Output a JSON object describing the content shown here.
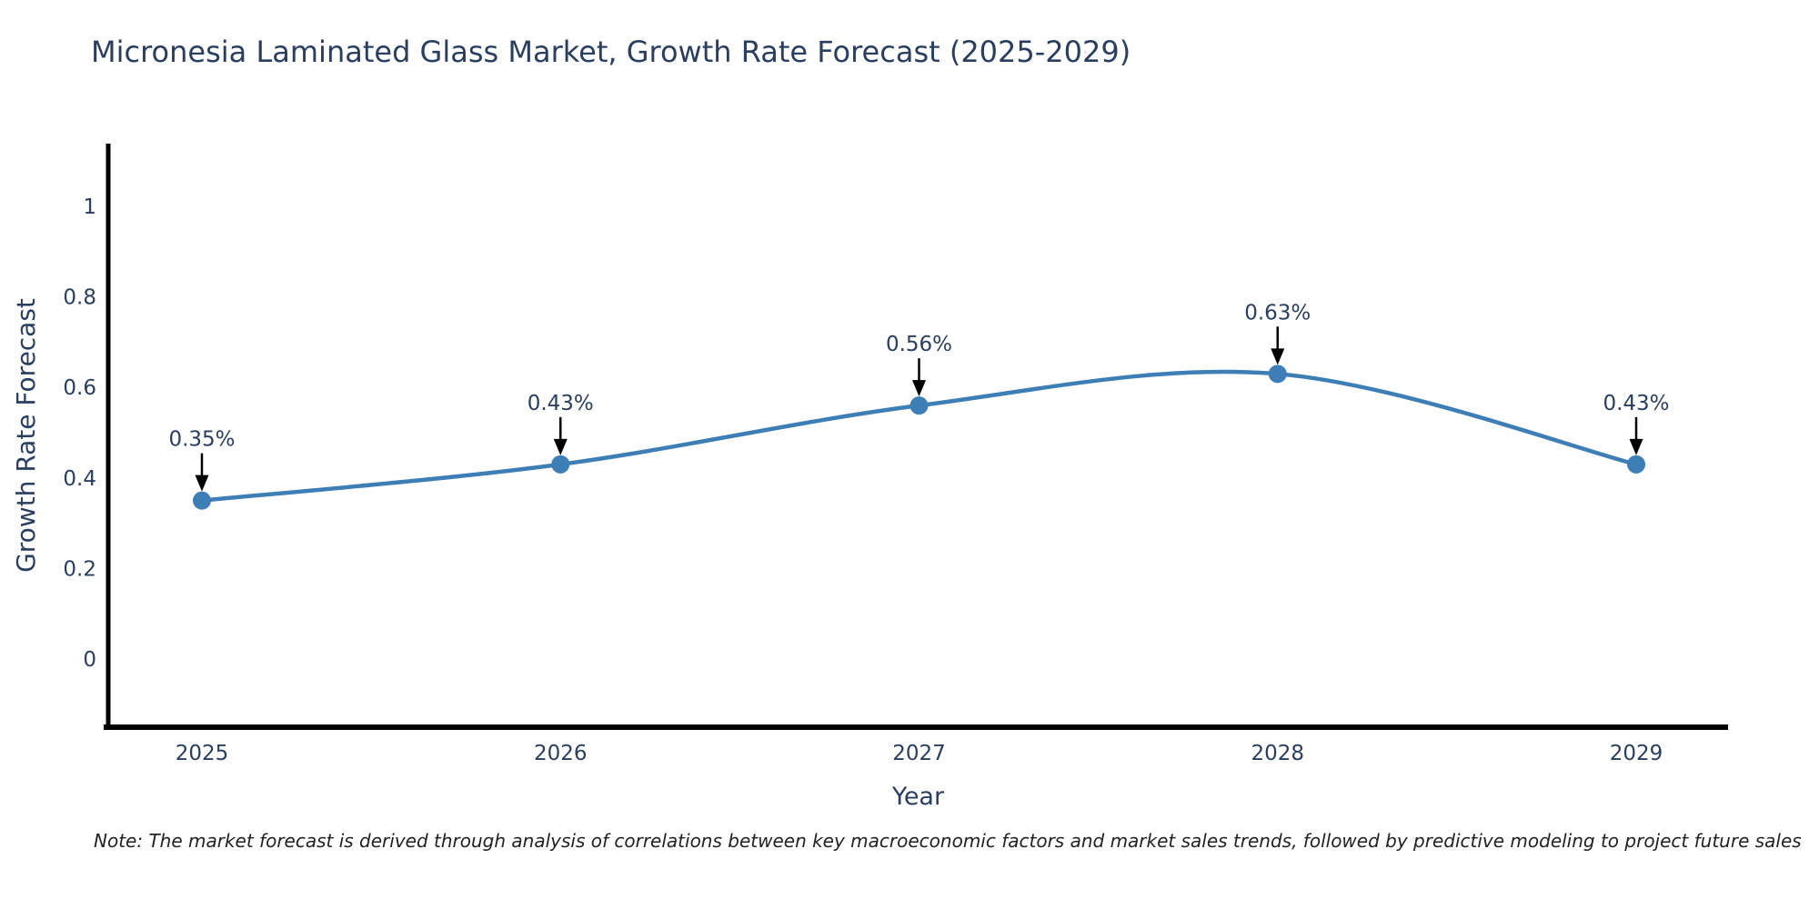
{
  "chart_data": {
    "type": "line",
    "line_shape": "spline",
    "title": "Micronesia Laminated Glass Market, Growth Rate Forecast (2025-2029)",
    "xlabel": "Year",
    "ylabel": "Growth Rate Forecast",
    "x": [
      2025,
      2026,
      2027,
      2028,
      2029
    ],
    "xtick_labels": [
      "2025",
      "2026",
      "2027",
      "2028",
      "2029"
    ],
    "series": [
      {
        "name": "Growth Rate Forecast",
        "values": [
          0.35,
          0.43,
          0.56,
          0.63,
          0.43
        ]
      }
    ],
    "point_labels": [
      "0.35%",
      "0.43%",
      "0.56%",
      "0.63%",
      "0.43%"
    ],
    "yticks": [
      0,
      0.2,
      0.4,
      0.6,
      0.8,
      1
    ],
    "ytick_labels": [
      "0",
      "0.2",
      "0.4",
      "0.6",
      "0.8",
      "1"
    ],
    "ylim": [
      -0.151,
      1.139
    ],
    "grid": false,
    "legend": "none",
    "colors": {
      "line": "#3d7eb6",
      "marker": "#3d7eb6",
      "axis": "#000000",
      "text": "#2a3f5f",
      "annotation_text": "#2a3f5f",
      "annotation_arrow": "#000000",
      "background": "#ffffff"
    },
    "note": "Note: The market forecast is derived through analysis of correlations between key macroeconomic factors and market sales trends, followed by predictive modeling to project future sales"
  }
}
